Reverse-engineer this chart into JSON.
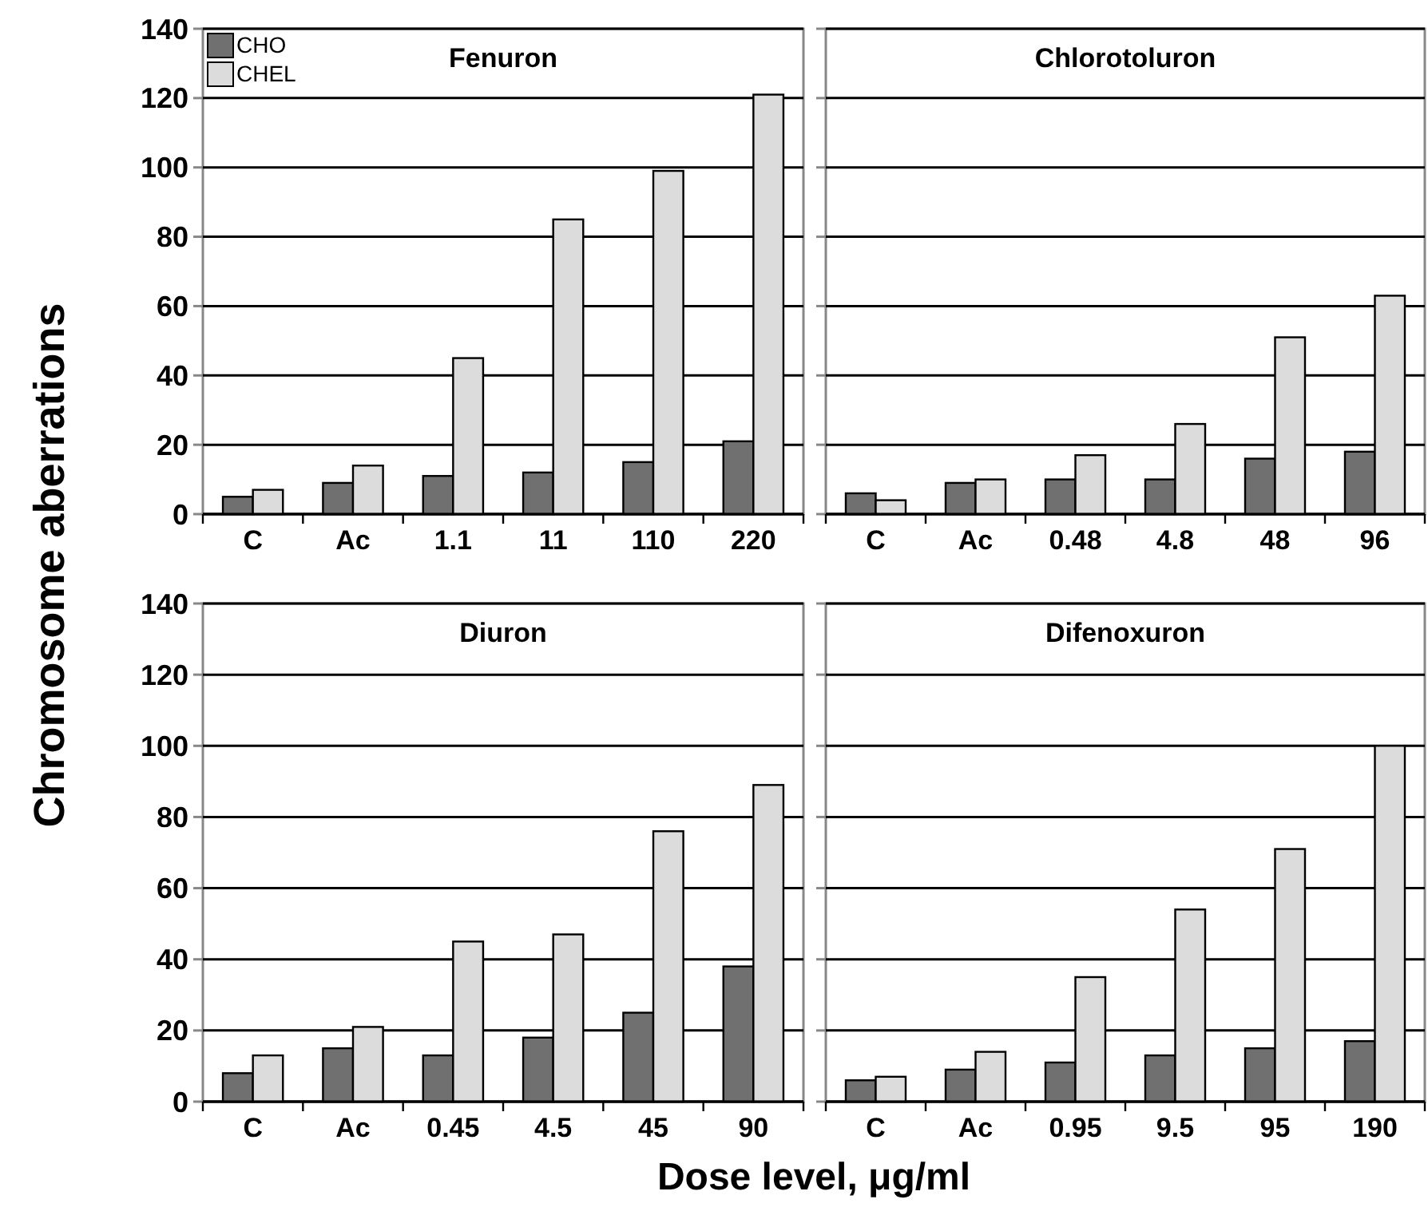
{
  "chart_data": [
    {
      "type": "bar",
      "title": "Fenuron",
      "ylabel": "Chromosome aberrations",
      "categories": [
        "C",
        "Ac",
        "1.1",
        "11",
        "110",
        "220"
      ],
      "ylim": [
        0,
        140
      ],
      "yticks": [
        0,
        20,
        40,
        60,
        80,
        100,
        120,
        140
      ],
      "grid": "y",
      "legend": "top left",
      "series": [
        {
          "name": "CHO",
          "color": "#707070",
          "values": [
            5,
            9,
            11,
            12,
            15,
            21
          ]
        },
        {
          "name": "CHEL",
          "color": "#dcdcdc",
          "values": [
            7,
            14,
            45,
            85,
            99,
            121
          ]
        }
      ]
    },
    {
      "type": "bar",
      "title": "Chlorotoluron",
      "categories": [
        "C",
        "Ac",
        "0.48",
        "4.8",
        "48",
        "96"
      ],
      "ylim": [
        0,
        140
      ],
      "yticks": [
        0,
        20,
        40,
        60,
        80,
        100,
        120,
        140
      ],
      "grid": "y",
      "tick_labels": "x",
      "series": [
        {
          "color": "#707070",
          "values": [
            6,
            9,
            10,
            10,
            16,
            18
          ]
        },
        {
          "color": "#dcdcdc",
          "values": [
            4,
            10,
            17,
            26,
            51,
            63
          ]
        }
      ]
    },
    {
      "type": "bar",
      "title": "Diuron",
      "xlabel": "Dose level, μg/ml",
      "categories": [
        "C",
        "Ac",
        "0.45",
        "4.5",
        "45",
        "90"
      ],
      "ylim": [
        0,
        140
      ],
      "yticks": [
        0,
        20,
        40,
        60,
        80,
        100,
        120,
        140
      ],
      "grid": "y",
      "series": [
        {
          "color": "#707070",
          "values": [
            8,
            15,
            13,
            18,
            25,
            38
          ]
        },
        {
          "color": "#dcdcdc",
          "values": [
            13,
            21,
            45,
            47,
            76,
            89
          ]
        }
      ]
    },
    {
      "type": "bar",
      "title": "Difenoxuron",
      "categories": [
        "C",
        "Ac",
        "0.95",
        "9.5",
        "95",
        "190"
      ],
      "ylim": [
        0,
        140
      ],
      "yticks": [
        0,
        20,
        40,
        60,
        80,
        100,
        120,
        140
      ],
      "grid": "y",
      "tick_labels": "x",
      "series": [
        {
          "color": "#707070",
          "values": [
            6,
            9,
            11,
            13,
            15,
            17
          ]
        },
        {
          "color": "#dcdcdc",
          "values": [
            7,
            14,
            35,
            54,
            71,
            100
          ]
        }
      ]
    }
  ]
}
